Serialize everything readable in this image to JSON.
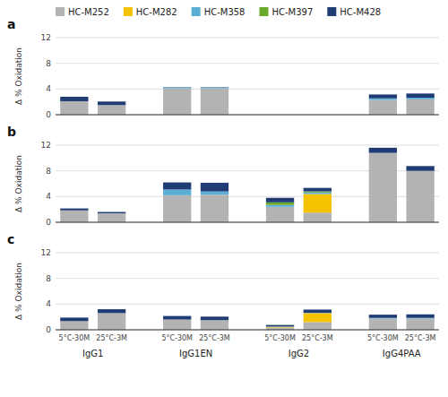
{
  "chart_data": [
    {
      "type": "bar",
      "title": "a",
      "stacked": true,
      "grid": true,
      "legend": "top",
      "tick_labels": "y",
      "y_label": "Δ % Oxidation",
      "ylim": [
        0,
        12
      ],
      "yticks": [
        0,
        4,
        8,
        12
      ],
      "categories": [
        null,
        null,
        null,
        null,
        null,
        null,
        null,
        null
      ],
      "series": [
        {
          "name": "HC-M252",
          "color": "#b3b3b3",
          "values": [
            2.1,
            1.5,
            4.1,
            4.1,
            0.0,
            0.0,
            2.3,
            2.4
          ]
        },
        {
          "name": "HC-M282",
          "color": "#f5c200",
          "values": [
            0.0,
            0.0,
            0.0,
            0.0,
            0.0,
            0.0,
            0.0,
            0.0
          ]
        },
        {
          "name": "HC-M358",
          "color": "#5bafd6",
          "values": [
            0.0,
            0.0,
            0.15,
            0.15,
            0.0,
            0.0,
            0.25,
            0.25
          ]
        },
        {
          "name": "HC-M397",
          "color": "#6aaa2a",
          "values": [
            0.0,
            0.0,
            0.0,
            0.0,
            0.0,
            0.0,
            0.0,
            0.0
          ]
        },
        {
          "name": "HC-M428",
          "color": "#1f3c74",
          "values": [
            0.7,
            0.55,
            0.05,
            0.05,
            0.0,
            0.0,
            0.6,
            0.65
          ]
        }
      ]
    },
    {
      "type": "bar",
      "title": "b",
      "stacked": true,
      "grid": true,
      "tick_labels": "y",
      "y_label": "Δ % Oxidation",
      "ylim": [
        0,
        12
      ],
      "yticks": [
        0,
        4,
        8,
        12
      ],
      "categories": [
        null,
        null,
        null,
        null,
        null,
        null,
        null,
        null
      ],
      "series": [
        {
          "name": "HC-M252",
          "color": "#b3b3b3",
          "values": [
            1.85,
            1.4,
            4.2,
            4.3,
            2.4,
            1.5,
            10.8,
            8.0
          ]
        },
        {
          "name": "HC-M282",
          "color": "#f5c200",
          "values": [
            0.0,
            0.0,
            0.0,
            0.0,
            0.0,
            2.9,
            0.0,
            0.0
          ]
        },
        {
          "name": "HC-M358",
          "color": "#5bafd6",
          "values": [
            0.0,
            0.0,
            0.9,
            0.5,
            0.3,
            0.25,
            0.0,
            0.0
          ]
        },
        {
          "name": "HC-M397",
          "color": "#6aaa2a",
          "values": [
            0.0,
            0.0,
            0.0,
            0.0,
            0.4,
            0.15,
            0.0,
            0.0
          ]
        },
        {
          "name": "HC-M428",
          "color": "#1f3c74",
          "values": [
            0.3,
            0.2,
            1.1,
            1.35,
            0.7,
            0.55,
            0.8,
            0.75
          ]
        }
      ]
    },
    {
      "type": "bar",
      "title": "c",
      "stacked": true,
      "grid": true,
      "y_label": "Δ % Oxidation",
      "ylim": [
        0,
        12
      ],
      "yticks": [
        0,
        4,
        8,
        12
      ],
      "categories": [
        "5°C-30M",
        "25°C-3M",
        "5°C-30M",
        "25°C-3M",
        "5°C-30M",
        "25°C-3M",
        "5°C-30M",
        "25°C-3M"
      ],
      "groups": [
        "IgG1",
        "IgG1EN",
        "IgG2",
        "IgG4PAA"
      ],
      "series": [
        {
          "name": "HC-M252",
          "color": "#b3b3b3",
          "values": [
            1.35,
            2.6,
            1.6,
            1.5,
            0.35,
            1.2,
            1.75,
            1.75
          ]
        },
        {
          "name": "HC-M282",
          "color": "#f5c200",
          "values": [
            0.0,
            0.0,
            0.0,
            0.0,
            0.1,
            1.4,
            0.0,
            0.0
          ]
        },
        {
          "name": "HC-M358",
          "color": "#5bafd6",
          "values": [
            0.0,
            0.0,
            0.0,
            0.0,
            0.05,
            0.05,
            0.1,
            0.1
          ]
        },
        {
          "name": "HC-M397",
          "color": "#6aaa2a",
          "values": [
            0.0,
            0.0,
            0.0,
            0.0,
            0.0,
            0.0,
            0.0,
            0.0
          ]
        },
        {
          "name": "HC-M428",
          "color": "#1f3c74",
          "values": [
            0.55,
            0.6,
            0.55,
            0.55,
            0.25,
            0.5,
            0.5,
            0.55
          ]
        }
      ]
    }
  ]
}
